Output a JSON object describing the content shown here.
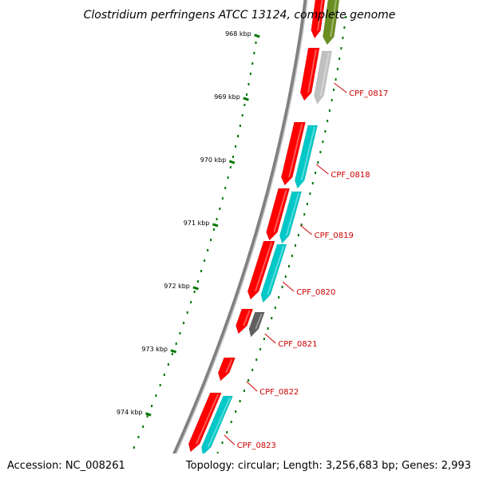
{
  "title": "Clostridium perfringens ATCC 13124, complete genome",
  "accession": "Accession: NC_008261",
  "topology": "Topology: circular; Length: 3,256,683 bp; Genes: 2,993",
  "colors": {
    "cds_strand": "#ff0000",
    "cog_cyan": "#00c8c8",
    "cog_gray": "#c0c0c0",
    "cog_dark": "#606060",
    "cog_olive": "#6b8e23",
    "tick": "#007700",
    "label": "#cc0000",
    "backbone": "#808080"
  },
  "ticks": [
    {
      "label": "968 kbp"
    },
    {
      "label": "969 kbp"
    },
    {
      "label": "970 kbp"
    },
    {
      "label": "971 kbp"
    },
    {
      "label": "972 kbp"
    },
    {
      "label": "973 kbp"
    },
    {
      "label": "974 kbp"
    }
  ],
  "genes": [
    {
      "label": "CPF_0817",
      "cog": "gray"
    },
    {
      "label": "CPF_0818",
      "cog": "cyan"
    },
    {
      "label": "CPF_0819",
      "cog": "cyan"
    },
    {
      "label": "CPF_0820",
      "cog": "cyan"
    },
    {
      "label": "CPF_0821",
      "cog": "dark"
    },
    {
      "label": "CPF_0822",
      "cog": "none"
    },
    {
      "label": "CPF_0823",
      "cog": "cyan"
    }
  ]
}
